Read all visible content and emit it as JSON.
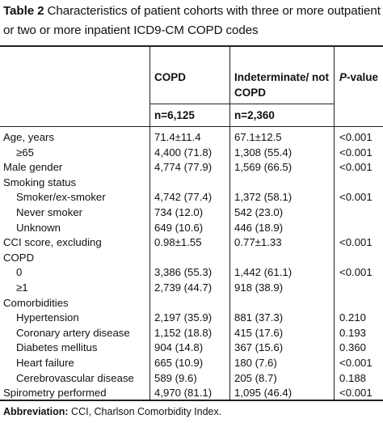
{
  "caption": {
    "label": "Table 2",
    "text": "Characteristics of patient cohorts with three or more outpatient or two or more inpatient ICD9-CM COPD codes"
  },
  "headers": {
    "col1": "COPD",
    "col2": "Indeterminate/ not COPD",
    "col3_italic": "P",
    "col3_rest": "-value",
    "n1": "n=6,125",
    "n2": "n=2,360"
  },
  "rows": [
    {
      "label": "Age, years",
      "indent": false,
      "c1": "71.4±11.4",
      "c2": "67.1±12.5",
      "c3": "<0.001"
    },
    {
      "label": "≥65",
      "indent": true,
      "c1": "4,400 (71.8)",
      "c2": "1,308 (55.4)",
      "c3": "<0.001"
    },
    {
      "label": "Male gender",
      "indent": false,
      "c1": "4,774 (77.9)",
      "c2": "1,569 (66.5)",
      "c3": "<0.001"
    },
    {
      "label": "Smoking status",
      "indent": false,
      "c1": "",
      "c2": "",
      "c3": ""
    },
    {
      "label": "Smoker/ex-smoker",
      "indent": true,
      "c1": "4,742 (77.4)",
      "c2": "1,372 (58.1)",
      "c3": "<0.001"
    },
    {
      "label": "Never smoker",
      "indent": true,
      "c1": "734 (12.0)",
      "c2": "542 (23.0)",
      "c3": ""
    },
    {
      "label": "Unknown",
      "indent": true,
      "c1": "649 (10.6)",
      "c2": "446 (18.9)",
      "c3": ""
    },
    {
      "label": "CCI score, excluding",
      "indent": false,
      "c1": "0.98±1.55",
      "c2": "0.77±1.33",
      "c3": "<0.001"
    },
    {
      "label": "COPD",
      "indent": false,
      "c1": "",
      "c2": "",
      "c3": ""
    },
    {
      "label": "0",
      "indent": true,
      "c1": "3,386 (55.3)",
      "c2": "1,442 (61.1)",
      "c3": "<0.001"
    },
    {
      "label": "≥1",
      "indent": true,
      "c1": "2,739 (44.7)",
      "c2": "918 (38.9)",
      "c3": ""
    },
    {
      "label": "Comorbidities",
      "indent": false,
      "c1": "",
      "c2": "",
      "c3": ""
    },
    {
      "label": "Hypertension",
      "indent": true,
      "c1": "2,197 (35.9)",
      "c2": "881 (37.3)",
      "c3": "0.210"
    },
    {
      "label": "Coronary artery disease",
      "indent": true,
      "c1": "1,152 (18.8)",
      "c2": "415 (17.6)",
      "c3": "0.193"
    },
    {
      "label": "Diabetes mellitus",
      "indent": true,
      "c1": "904 (14.8)",
      "c2": "367 (15.6)",
      "c3": "0.360"
    },
    {
      "label": "Heart failure",
      "indent": true,
      "c1": "665 (10.9)",
      "c2": "180 (7.6)",
      "c3": "<0.001"
    },
    {
      "label": "Cerebrovascular disease",
      "indent": true,
      "c1": "589 (9.6)",
      "c2": "205 (8.7)",
      "c3": "0.188"
    },
    {
      "label": "Spirometry performed",
      "indent": false,
      "c1": "4,970 (81.1)",
      "c2": "1,095 (46.4)",
      "c3": "<0.001"
    }
  ],
  "footnote": {
    "label": "Abbreviation:",
    "text": "CCI, Charlson Comorbidity Index."
  }
}
